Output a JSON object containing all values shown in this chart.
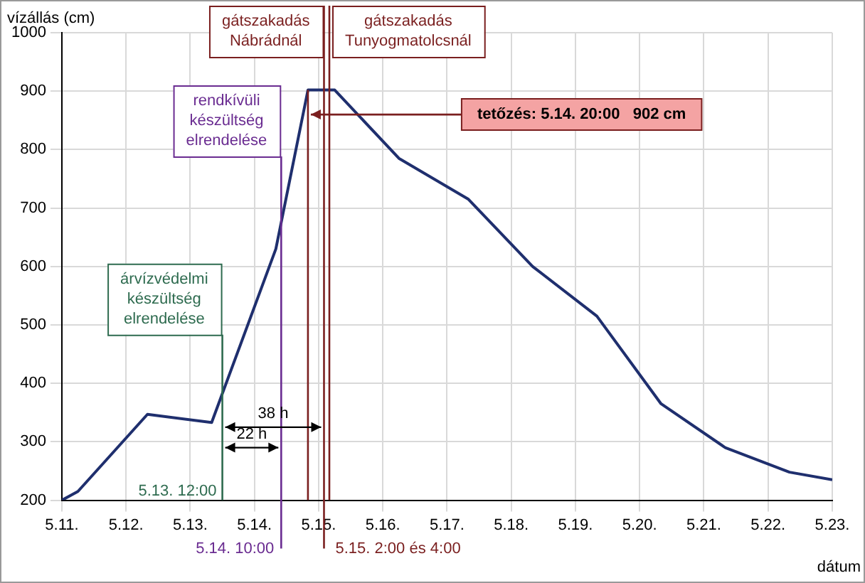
{
  "chart_data": {
    "type": "line",
    "xlabel": "dátum",
    "ylabel": "vízállás (cm)",
    "x": [
      "--05-11T00:00",
      "--05-11T06:00",
      "--05-12T08:00",
      "--05-13T08:00",
      "--05-14T08:00",
      "--05-14T20:00",
      "--05-15T06:00",
      "--05-16T06:00",
      "--05-17T08:00",
      "--05-18T08:00",
      "--05-19T08:00",
      "--05-20T08:00",
      "--05-21T08:00",
      "--05-22T08:00",
      "--05-23T00:00"
    ],
    "series": [
      {
        "color": "#1f2f6e",
        "values": [
          200,
          215,
          347,
          333,
          630,
          902,
          902,
          785,
          715,
          600,
          515,
          365,
          290,
          248,
          235
        ]
      }
    ],
    "xlim": [
      "--05-11",
      "--05-23"
    ],
    "xticks": [
      {
        "value": "--05-11",
        "label": "5.11."
      },
      {
        "value": "--05-12",
        "label": "5.12."
      },
      {
        "value": "--05-13",
        "label": "5.13."
      },
      {
        "value": "--05-14",
        "label": "5.14."
      },
      {
        "value": "--05-15",
        "label": "5.15."
      },
      {
        "value": "--05-16",
        "label": "5.16."
      },
      {
        "value": "--05-17",
        "label": "5.17."
      },
      {
        "value": "--05-18",
        "label": "5.18."
      },
      {
        "value": "--05-19",
        "label": "5.19."
      },
      {
        "value": "--05-20",
        "label": "5.20."
      },
      {
        "value": "--05-21",
        "label": "5.21."
      },
      {
        "value": "--05-22",
        "label": "5.22."
      },
      {
        "value": "--05-23",
        "label": "5.23."
      }
    ],
    "ylim": [
      200,
      1000
    ],
    "yticks": [
      200,
      300,
      400,
      500,
      600,
      700,
      800,
      900,
      1000
    ],
    "grid": true,
    "marker": "none",
    "line_style": "solid",
    "ref_lines": [
      {
        "axis": "x",
        "value": "--05-13T12:00",
        "label": "árvízvédelmi\nkészültség\nelrendelése",
        "color": "#2e6b4f"
      },
      {
        "axis": "x",
        "value": "--05-14T10:00",
        "label": "rendkívüli\nkészültség\nelrendelése",
        "color": "#6a2c91"
      },
      {
        "axis": "x",
        "value": "--05-15T02:00",
        "label": "gátszakadás\nNábrádnál",
        "color": "#7a1f1f"
      },
      {
        "axis": "x",
        "value": "--05-15T04:00",
        "label": "gátszakadás\nTunyogmatolcsnál",
        "color": "#7a1f1f"
      },
      {
        "axis": "x",
        "value": "--05-14T20:00",
        "color": "#7a1f1f"
      }
    ],
    "annotations": [
      {
        "text": "5.13. 12:00",
        "x": "--05-13T12:00",
        "y": 215
      },
      {
        "text": "5.14. 10:00",
        "x": "--05-14T10:00"
      },
      {
        "text": "5.15. 2:00 és 4:00",
        "x": "--05-15T02:00"
      },
      {
        "text": "38 h",
        "x": "--05-15T02:00",
        "y": 325
      },
      {
        "text": "22 h",
        "x": "--05-14T10:00",
        "y": 290
      },
      {
        "text": "tetőzés: 5.14. 20:00   902 cm",
        "x": "--05-14T20:00",
        "y": 860
      }
    ]
  }
}
